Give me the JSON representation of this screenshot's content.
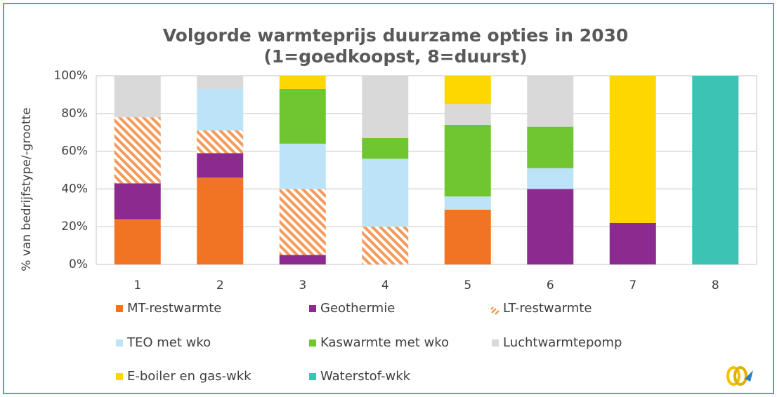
{
  "chart_data": {
    "type": "stacked_bar",
    "title": "Volgorde warmteprijs duurzame opties in 2030",
    "subtitle": "(1=goedkoopst, 8=duurst)",
    "y_label": "% van bedrijfstype/-grootte",
    "categories": [
      "1",
      "2",
      "3",
      "4",
      "5",
      "6",
      "7",
      "8"
    ],
    "series": [
      {
        "name": "MT-restwarmte",
        "color": "#f07424",
        "values": [
          24,
          46,
          0,
          0,
          29,
          0,
          0,
          0
        ]
      },
      {
        "name": "Geothermie",
        "color": "#8b2a8f",
        "values": [
          19,
          13,
          5,
          0,
          0,
          40,
          22,
          0
        ]
      },
      {
        "name": "LT-restwarmte",
        "color": "#f49a5a",
        "pattern": "hatch",
        "values": [
          35,
          12,
          35,
          20,
          0,
          0,
          0,
          0
        ]
      },
      {
        "name": "TEO met wko",
        "color": "#bde3f8",
        "values": [
          0,
          22,
          24,
          36,
          7,
          11,
          0,
          0
        ]
      },
      {
        "name": "Kaswarmte met wko",
        "color": "#6fc631",
        "values": [
          0,
          0,
          29,
          11,
          38,
          22,
          0,
          0
        ]
      },
      {
        "name": "Luchtwarmtepomp",
        "color": "#d9d9d9",
        "values": [
          22,
          7,
          0,
          33,
          11,
          27,
          0,
          0
        ]
      },
      {
        "name": "E-boiler en gas-wkk",
        "color": "#ffd700",
        "values": [
          0,
          0,
          7,
          0,
          15,
          0,
          78,
          0
        ]
      },
      {
        "name": "Waterstof-wkk",
        "color": "#3cc3b3",
        "values": [
          0,
          0,
          0,
          0,
          0,
          0,
          0,
          100
        ]
      }
    ],
    "ylim": [
      0,
      100
    ],
    "yticks": [
      {
        "value": 0,
        "label": "0%"
      },
      {
        "value": 20,
        "label": "20%"
      },
      {
        "value": 40,
        "label": "40%"
      },
      {
        "value": 60,
        "label": "60%"
      },
      {
        "value": 80,
        "label": "80%"
      },
      {
        "value": 100,
        "label": "100%"
      }
    ],
    "grid": true
  }
}
